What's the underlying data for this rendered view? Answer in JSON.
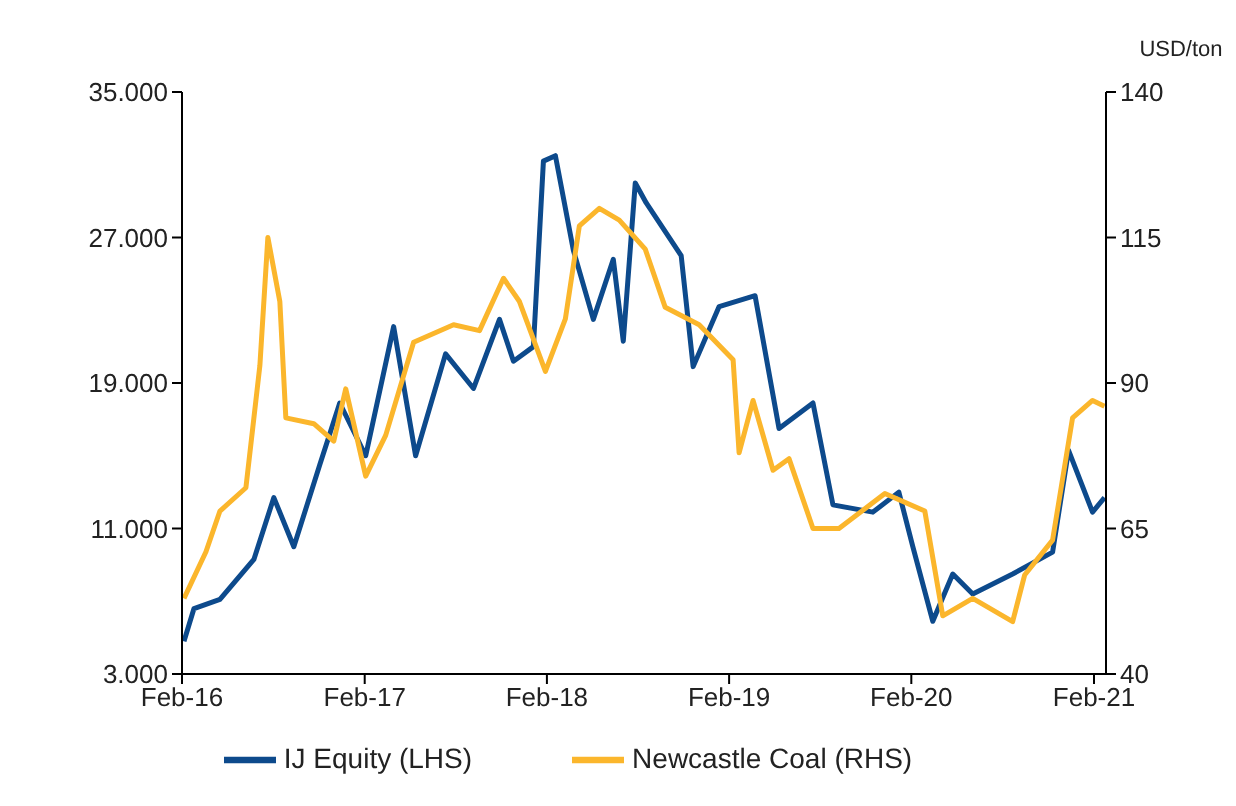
{
  "chart_data": {
    "type": "line",
    "y2label": "USD/ton",
    "legend": "bottom",
    "xlim": [
      "2016-02-01",
      "2021-02-25"
    ],
    "xticks": [
      {
        "value": "2016-02-01",
        "label": "Feb-16"
      },
      {
        "value": "2017-02-01",
        "label": "Feb-17"
      },
      {
        "value": "2018-02-01",
        "label": "Feb-18"
      },
      {
        "value": "2019-02-01",
        "label": "Feb-19"
      },
      {
        "value": "2020-02-01",
        "label": "Feb-20"
      },
      {
        "value": "2021-02-01",
        "label": "Feb-21"
      }
    ],
    "ylim": [
      3000,
      35000
    ],
    "yticks": [
      {
        "value": 3000,
        "label": "3.000"
      },
      {
        "value": 11000,
        "label": "11.000"
      },
      {
        "value": 19000,
        "label": "19.000"
      },
      {
        "value": 27000,
        "label": "27.000"
      },
      {
        "value": 35000,
        "label": "35.000"
      }
    ],
    "y2lim": [
      40,
      140
    ],
    "y2ticks": [
      40,
      65,
      90,
      115,
      140
    ],
    "series": [
      {
        "name": "IJ Equity (LHS)",
        "color": "#0d4a8c",
        "axis": "y",
        "x": [
          "2016-02-05",
          "2016-02-25",
          "2016-04-17",
          "2016-06-24",
          "2016-08-03",
          "2016-09-12",
          "2016-11-03",
          "2016-12-13",
          "2017-02-03",
          "2017-03-31",
          "2017-05-14",
          "2017-07-13",
          "2017-09-07",
          "2017-10-29",
          "2017-11-26",
          "2018-01-05",
          "2018-01-25",
          "2018-02-18",
          "2018-03-26",
          "2018-05-05",
          "2018-06-14",
          "2018-07-04",
          "2018-07-28",
          "2018-08-19",
          "2018-10-28",
          "2018-11-21",
          "2019-01-12",
          "2019-03-25",
          "2019-05-12",
          "2019-07-19",
          "2019-08-28",
          "2019-11-16",
          "2020-01-07",
          "2020-02-04",
          "2020-03-15",
          "2020-04-24",
          "2020-06-03",
          "2020-08-22",
          "2020-11-10",
          "2020-12-12",
          "2021-01-29",
          "2021-02-22"
        ],
        "values": [
          4800,
          6600,
          7100,
          9300,
          12700,
          10000,
          14500,
          17900,
          15000,
          22100,
          15000,
          20600,
          18700,
          22500,
          20200,
          21000,
          31200,
          31500,
          26300,
          22500,
          25800,
          21300,
          30000,
          28900,
          26000,
          19900,
          23200,
          23800,
          16500,
          17900,
          12300,
          11900,
          13000,
          10000,
          5900,
          8500,
          7400,
          8500,
          9700,
          15300,
          11900,
          12700
        ]
      },
      {
        "name": "Newcastle Coal (RHS)",
        "color": "#fbb62c",
        "axis": "y2",
        "x": [
          "2016-02-05",
          "2016-03-20",
          "2016-04-17",
          "2016-06-08",
          "2016-07-06",
          "2016-07-22",
          "2016-08-15",
          "2016-08-27",
          "2016-10-22",
          "2016-12-01",
          "2016-12-25",
          "2017-02-03",
          "2017-03-15",
          "2017-05-10",
          "2017-07-29",
          "2017-09-19",
          "2017-11-06",
          "2017-12-08",
          "2018-01-29",
          "2018-03-10",
          "2018-04-07",
          "2018-05-17",
          "2018-06-26",
          "2018-08-17",
          "2018-09-26",
          "2018-12-03",
          "2019-02-09",
          "2019-02-21",
          "2019-03-21",
          "2019-04-30",
          "2019-06-01",
          "2019-07-19",
          "2019-09-09",
          "2019-12-10",
          "2020-02-28",
          "2020-04-04",
          "2020-06-03",
          "2020-08-22",
          "2020-09-15",
          "2020-11-10",
          "2020-12-20",
          "2021-01-29",
          "2021-02-22"
        ],
        "values": [
          53,
          61,
          68,
          72,
          93,
          115,
          104,
          84,
          83,
          80,
          89,
          74,
          81,
          97,
          100,
          99,
          108,
          104,
          92,
          101,
          117,
          120,
          118,
          113,
          103,
          100,
          94,
          78,
          87,
          75,
          77,
          65,
          65,
          71,
          68,
          50,
          53,
          49,
          57,
          63,
          84,
          87,
          86
        ]
      }
    ]
  }
}
